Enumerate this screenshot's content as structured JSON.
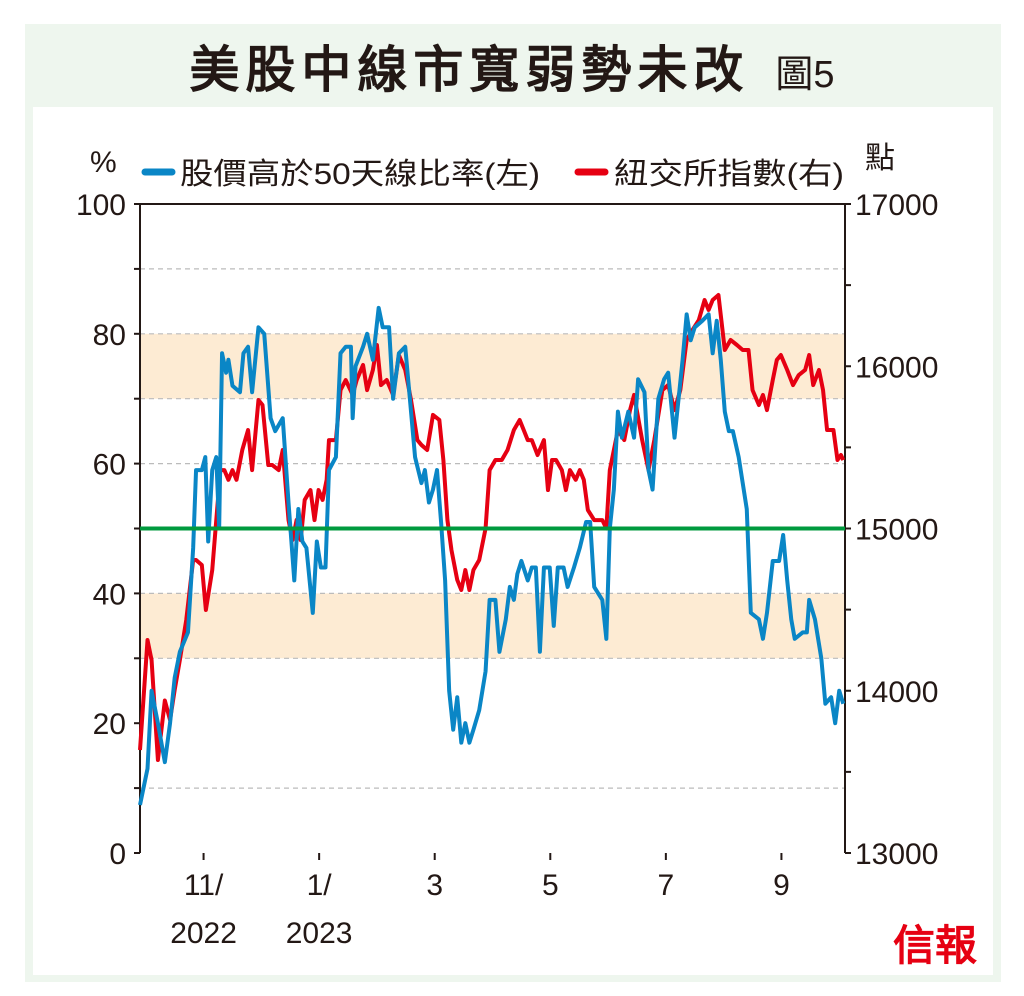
{
  "title": "美股中線市寬弱勢未改",
  "figure_label": "圖5",
  "logo": "信報",
  "colors": {
    "breadth": "#0a86c6",
    "index": "#e60012",
    "threshold": "#009a3e",
    "band": "#fdebd3"
  },
  "chart_data": {
    "type": "line",
    "title": "美股中線市寬弱勢未改",
    "left_unit": "%",
    "right_unit": "點",
    "ylim": [
      0,
      100
    ],
    "y2lim": [
      13000,
      17000
    ],
    "yticks": [
      "0",
      "20",
      "40",
      "60",
      "80",
      "100"
    ],
    "y2ticks": [
      "13000",
      "14000",
      "15000",
      "16000",
      "17000"
    ],
    "xlim": [
      -0.1,
      12.1
    ],
    "xticks": [
      {
        "x": 1,
        "l1": "11/",
        "l2": "2022"
      },
      {
        "x": 3,
        "l1": "1/",
        "l2": "2023"
      },
      {
        "x": 5,
        "l1": "3",
        "l2": ""
      },
      {
        "x": 7,
        "l1": "5",
        "l2": ""
      },
      {
        "x": 9,
        "l1": "7",
        "l2": ""
      },
      {
        "x": 11,
        "l1": "9",
        "l2": ""
      }
    ],
    "xunit": "months since Oct 2022",
    "threshold": 50,
    "bands": [
      [
        70,
        80
      ],
      [
        30,
        40
      ]
    ],
    "gridlines": [
      10,
      30,
      40,
      60,
      70,
      80,
      90
    ],
    "series": [
      {
        "name": "股價高於50天線比率(左)",
        "axis": "left",
        "points": [
          [
            -0.1,
            7.4
          ],
          [
            0.03,
            13
          ],
          [
            0.1,
            25
          ],
          [
            0.21,
            20
          ],
          [
            0.33,
            14
          ],
          [
            0.42,
            20
          ],
          [
            0.5,
            27
          ],
          [
            0.59,
            31
          ],
          [
            0.73,
            34
          ],
          [
            0.82,
            47
          ],
          [
            0.87,
            59
          ],
          [
            0.97,
            59
          ],
          [
            1.03,
            61
          ],
          [
            1.08,
            48
          ],
          [
            1.15,
            59
          ],
          [
            1.22,
            61
          ],
          [
            1.27,
            50
          ],
          [
            1.32,
            77
          ],
          [
            1.39,
            74
          ],
          [
            1.43,
            76
          ],
          [
            1.5,
            72
          ],
          [
            1.63,
            71
          ],
          [
            1.69,
            77
          ],
          [
            1.77,
            78
          ],
          [
            1.84,
            71
          ],
          [
            1.95,
            81
          ],
          [
            2.05,
            80
          ],
          [
            2.16,
            67
          ],
          [
            2.24,
            65
          ],
          [
            2.37,
            67
          ],
          [
            2.47,
            54
          ],
          [
            2.57,
            42
          ],
          [
            2.64,
            53
          ],
          [
            2.71,
            48
          ],
          [
            2.78,
            47
          ],
          [
            2.89,
            37
          ],
          [
            2.96,
            48
          ],
          [
            3.03,
            44
          ],
          [
            3.11,
            44
          ],
          [
            3.17,
            59
          ],
          [
            3.29,
            61
          ],
          [
            3.37,
            77
          ],
          [
            3.46,
            78
          ],
          [
            3.55,
            78
          ],
          [
            3.58,
            67
          ],
          [
            3.63,
            75
          ],
          [
            3.76,
            78
          ],
          [
            3.83,
            80
          ],
          [
            3.93,
            76
          ],
          [
            4.03,
            84
          ],
          [
            4.1,
            81
          ],
          [
            4.21,
            81
          ],
          [
            4.28,
            70
          ],
          [
            4.38,
            77
          ],
          [
            4.49,
            78
          ],
          [
            4.56,
            71
          ],
          [
            4.66,
            61
          ],
          [
            4.77,
            57
          ],
          [
            4.83,
            59
          ],
          [
            4.9,
            54
          ],
          [
            4.97,
            56
          ],
          [
            5.04,
            59
          ],
          [
            5.11,
            51
          ],
          [
            5.18,
            42
          ],
          [
            5.25,
            25
          ],
          [
            5.32,
            19
          ],
          [
            5.39,
            24
          ],
          [
            5.46,
            17
          ],
          [
            5.53,
            20
          ],
          [
            5.6,
            17
          ],
          [
            5.67,
            19
          ],
          [
            5.77,
            22
          ],
          [
            5.88,
            28
          ],
          [
            5.95,
            39
          ],
          [
            6.05,
            39
          ],
          [
            6.12,
            31
          ],
          [
            6.23,
            36
          ],
          [
            6.3,
            41
          ],
          [
            6.37,
            39
          ],
          [
            6.43,
            43
          ],
          [
            6.5,
            45
          ],
          [
            6.61,
            42
          ],
          [
            6.68,
            44
          ],
          [
            6.75,
            44
          ],
          [
            6.82,
            31
          ],
          [
            6.89,
            44
          ],
          [
            6.99,
            44
          ],
          [
            7.06,
            35
          ],
          [
            7.13,
            44
          ],
          [
            7.23,
            44
          ],
          [
            7.3,
            41
          ],
          [
            7.41,
            44
          ],
          [
            7.51,
            47
          ],
          [
            7.62,
            51
          ],
          [
            7.69,
            51
          ],
          [
            7.76,
            41
          ],
          [
            7.9,
            39
          ],
          [
            7.97,
            33
          ],
          [
            8.03,
            50
          ],
          [
            8.1,
            56
          ],
          [
            8.17,
            68
          ],
          [
            8.24,
            64
          ],
          [
            8.35,
            68
          ],
          [
            8.45,
            64
          ],
          [
            8.52,
            73
          ],
          [
            8.63,
            71
          ],
          [
            8.7,
            59
          ],
          [
            8.77,
            56
          ],
          [
            8.87,
            70
          ],
          [
            8.97,
            73
          ],
          [
            9.04,
            74
          ],
          [
            9.15,
            64
          ],
          [
            9.22,
            70
          ],
          [
            9.29,
            76
          ],
          [
            9.36,
            83
          ],
          [
            9.43,
            79
          ],
          [
            9.5,
            81
          ],
          [
            9.63,
            82
          ],
          [
            9.74,
            83
          ],
          [
            9.81,
            77
          ],
          [
            9.88,
            82
          ],
          [
            9.95,
            76
          ],
          [
            10.02,
            68
          ],
          [
            10.09,
            65
          ],
          [
            10.16,
            65
          ],
          [
            10.26,
            61
          ],
          [
            10.4,
            53
          ],
          [
            10.47,
            37
          ],
          [
            10.61,
            36
          ],
          [
            10.68,
            33
          ],
          [
            10.75,
            37
          ],
          [
            10.85,
            45
          ],
          [
            10.96,
            45
          ],
          [
            11.03,
            49
          ],
          [
            11.1,
            42
          ],
          [
            11.17,
            36
          ],
          [
            11.23,
            33
          ],
          [
            11.37,
            34
          ],
          [
            11.44,
            34
          ],
          [
            11.48,
            39
          ],
          [
            11.58,
            36
          ],
          [
            11.69,
            30
          ],
          [
            11.76,
            23
          ],
          [
            11.86,
            24
          ],
          [
            11.93,
            20
          ],
          [
            12.0,
            25
          ],
          [
            12.07,
            23
          ]
        ]
      },
      {
        "name": "紐交所指數(右)",
        "axis": "right",
        "points": [
          [
            -0.1,
            13635
          ],
          [
            0.03,
            14313
          ],
          [
            0.1,
            14190
          ],
          [
            0.21,
            13573
          ],
          [
            0.33,
            13940
          ],
          [
            0.42,
            13820
          ],
          [
            0.5,
            14005
          ],
          [
            0.59,
            14190
          ],
          [
            0.7,
            14436
          ],
          [
            0.82,
            14806
          ],
          [
            0.87,
            14806
          ],
          [
            0.97,
            14775
          ],
          [
            1.04,
            14498
          ],
          [
            1.15,
            14744
          ],
          [
            1.22,
            15052
          ],
          [
            1.29,
            15360
          ],
          [
            1.36,
            15360
          ],
          [
            1.43,
            15300
          ],
          [
            1.5,
            15360
          ],
          [
            1.57,
            15300
          ],
          [
            1.67,
            15484
          ],
          [
            1.77,
            15607
          ],
          [
            1.84,
            15360
          ],
          [
            1.95,
            15792
          ],
          [
            2.02,
            15761
          ],
          [
            2.12,
            15391
          ],
          [
            2.19,
            15391
          ],
          [
            2.3,
            15360
          ],
          [
            2.37,
            15484
          ],
          [
            2.47,
            15052
          ],
          [
            2.54,
            14929
          ],
          [
            2.61,
            15052
          ],
          [
            2.68,
            14929
          ],
          [
            2.75,
            15176
          ],
          [
            2.85,
            15237
          ],
          [
            2.92,
            15052
          ],
          [
            2.99,
            15237
          ],
          [
            3.06,
            15176
          ],
          [
            3.13,
            15300
          ],
          [
            3.17,
            15545
          ],
          [
            3.29,
            15545
          ],
          [
            3.37,
            15853
          ],
          [
            3.46,
            15915
          ],
          [
            3.58,
            15823
          ],
          [
            3.65,
            15915
          ],
          [
            3.76,
            16008
          ],
          [
            3.83,
            15853
          ],
          [
            3.93,
            15977
          ],
          [
            4.0,
            16131
          ],
          [
            4.07,
            15884
          ],
          [
            4.17,
            15915
          ],
          [
            4.28,
            15823
          ],
          [
            4.38,
            16069
          ],
          [
            4.49,
            15977
          ],
          [
            4.59,
            15792
          ],
          [
            4.7,
            15545
          ],
          [
            4.77,
            15515
          ],
          [
            4.87,
            15484
          ],
          [
            4.97,
            15700
          ],
          [
            5.08,
            15669
          ],
          [
            5.15,
            15422
          ],
          [
            5.22,
            15052
          ],
          [
            5.29,
            14867
          ],
          [
            5.39,
            14683
          ],
          [
            5.46,
            14621
          ],
          [
            5.53,
            14744
          ],
          [
            5.6,
            14621
          ],
          [
            5.67,
            14744
          ],
          [
            5.77,
            14806
          ],
          [
            5.88,
            15000
          ],
          [
            5.95,
            15360
          ],
          [
            6.05,
            15422
          ],
          [
            6.16,
            15422
          ],
          [
            6.26,
            15484
          ],
          [
            6.37,
            15607
          ],
          [
            6.47,
            15669
          ],
          [
            6.54,
            15607
          ],
          [
            6.61,
            15545
          ],
          [
            6.68,
            15545
          ],
          [
            6.78,
            15453
          ],
          [
            6.89,
            15545
          ],
          [
            6.96,
            15237
          ],
          [
            7.03,
            15422
          ],
          [
            7.1,
            15422
          ],
          [
            7.2,
            15360
          ],
          [
            7.27,
            15237
          ],
          [
            7.34,
            15360
          ],
          [
            7.44,
            15300
          ],
          [
            7.51,
            15360
          ],
          [
            7.58,
            15300
          ],
          [
            7.65,
            15114
          ],
          [
            7.76,
            15052
          ],
          [
            7.9,
            15052
          ],
          [
            7.97,
            15000
          ],
          [
            8.03,
            15360
          ],
          [
            8.17,
            15607
          ],
          [
            8.28,
            15545
          ],
          [
            8.38,
            15730
          ],
          [
            8.45,
            15823
          ],
          [
            8.59,
            15545
          ],
          [
            8.7,
            15360
          ],
          [
            8.8,
            15545
          ],
          [
            8.94,
            15853
          ],
          [
            9.04,
            15884
          ],
          [
            9.15,
            15730
          ],
          [
            9.25,
            15853
          ],
          [
            9.36,
            16162
          ],
          [
            9.46,
            16223
          ],
          [
            9.57,
            16285
          ],
          [
            9.67,
            16408
          ],
          [
            9.74,
            16347
          ],
          [
            9.81,
            16408
          ],
          [
            9.91,
            16439
          ],
          [
            10.02,
            16100
          ],
          [
            10.12,
            16162
          ],
          [
            10.23,
            16131
          ],
          [
            10.33,
            16100
          ],
          [
            10.43,
            16100
          ],
          [
            10.5,
            15853
          ],
          [
            10.61,
            15761
          ],
          [
            10.68,
            15823
          ],
          [
            10.75,
            15730
          ],
          [
            10.85,
            15915
          ],
          [
            10.92,
            16039
          ],
          [
            10.99,
            16069
          ],
          [
            11.1,
            15977
          ],
          [
            11.2,
            15884
          ],
          [
            11.3,
            15946
          ],
          [
            11.41,
            15977
          ],
          [
            11.48,
            16069
          ],
          [
            11.55,
            15884
          ],
          [
            11.65,
            15977
          ],
          [
            11.72,
            15853
          ],
          [
            11.79,
            15607
          ],
          [
            11.9,
            15607
          ],
          [
            11.97,
            15422
          ],
          [
            12.03,
            15453
          ],
          [
            12.07,
            15422
          ]
        ]
      }
    ]
  }
}
